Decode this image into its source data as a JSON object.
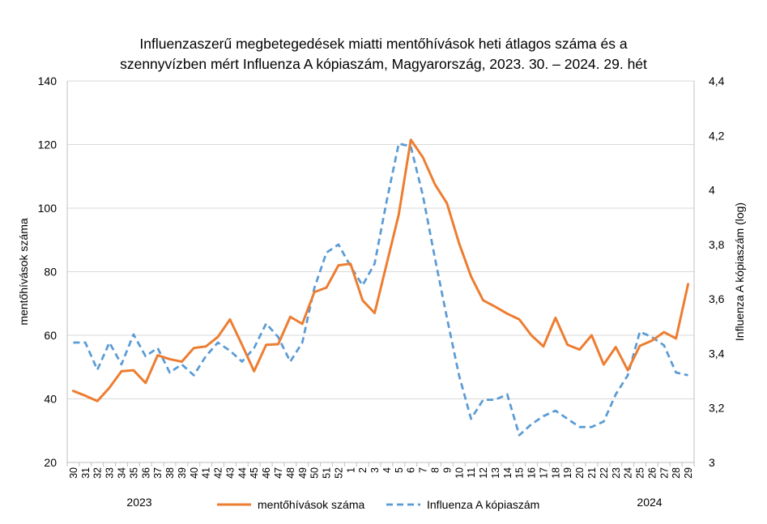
{
  "chart_data": {
    "type": "line",
    "title": [
      "Influenzaszerű megbetegedések miatti mentőhívások heti átlagos száma és a",
      "szennyvízben mért Influenza A kópiaszám, Magyarország, 2023. 30. – 2024. 29. hét"
    ],
    "categories": [
      "30",
      "31",
      "32",
      "33",
      "34",
      "35",
      "36",
      "37",
      "38",
      "39",
      "40",
      "41",
      "42",
      "43",
      "44",
      "45",
      "46",
      "47",
      "48",
      "49",
      "50",
      "51",
      "52",
      "1",
      "2",
      "3",
      "4",
      "5",
      "6",
      "7",
      "8",
      "9",
      "10",
      "11",
      "12",
      "13",
      "14",
      "15",
      "16",
      "17",
      "18",
      "19",
      "20",
      "21",
      "22",
      "23",
      "24",
      "25",
      "26",
      "27",
      "28",
      "29"
    ],
    "year_labels": [
      "2023",
      "2024"
    ],
    "y_left": {
      "label": "mentőhívások száma",
      "min": 20,
      "max": 140,
      "ticks": [
        "20",
        "40",
        "60",
        "80",
        "100",
        "120",
        "140"
      ]
    },
    "y_right": {
      "label": "Influenza A kópiaszám (log)",
      "min": 3,
      "max": 4.4,
      "ticks": [
        "3",
        "3,2",
        "3,4",
        "3,6",
        "3,8",
        "4",
        "4,2",
        "4,4"
      ]
    },
    "series": [
      {
        "name": "mentőhívások száma",
        "axis": "left",
        "color": "#ED7D31",
        "dash": "solid",
        "values": [
          42.5,
          41,
          39.3,
          43.5,
          48.7,
          49,
          45,
          53.7,
          52.5,
          51.7,
          56,
          56.5,
          59.5,
          65,
          57,
          48.7,
          57,
          57.2,
          65.8,
          63.6,
          73.6,
          75,
          82,
          82.5,
          71,
          67,
          82.5,
          98,
          121.5,
          116,
          107.5,
          101.5,
          89,
          78.5,
          71,
          69,
          66.8,
          65,
          60,
          56.5,
          65.5,
          57,
          55.5,
          60,
          50.8,
          56.3,
          49,
          56.7,
          58.3,
          61,
          59,
          76.1
        ]
      },
      {
        "name": "Influenza A kópiaszám",
        "axis": "right",
        "color": "#5B9BD5",
        "dash": "dashed",
        "values": [
          3.44,
          3.44,
          3.34,
          3.44,
          3.36,
          3.47,
          3.39,
          3.42,
          3.33,
          3.36,
          3.32,
          3.39,
          3.44,
          3.41,
          3.37,
          3.42,
          3.51,
          3.46,
          3.37,
          3.44,
          3.64,
          3.77,
          3.8,
          3.72,
          3.65,
          3.73,
          3.96,
          4.17,
          4.16,
          3.98,
          3.75,
          3.53,
          3.32,
          3.16,
          3.23,
          3.23,
          3.25,
          3.1,
          3.14,
          3.17,
          3.19,
          3.16,
          3.13,
          3.13,
          3.15,
          3.25,
          3.32,
          3.48,
          3.46,
          3.43,
          3.33,
          3.32
        ]
      }
    ],
    "legend_position": "bottom",
    "grid": true
  }
}
